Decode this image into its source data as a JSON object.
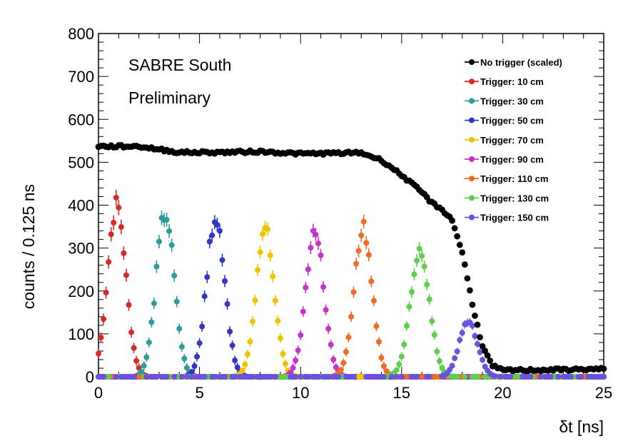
{
  "chart_data": {
    "type": "scatter",
    "title": "",
    "xlabel": "δt [ns]",
    "ylabel": "counts / 0.125 ns",
    "xlim": [
      0,
      25
    ],
    "ylim": [
      0,
      800
    ],
    "x_ticks": [
      "0",
      "5",
      "10",
      "15",
      "20",
      "25"
    ],
    "y_ticks": [
      "0",
      "100",
      "200",
      "300",
      "400",
      "500",
      "600",
      "700",
      "800"
    ],
    "grid": false,
    "legend_position": "top-right",
    "annotations": [
      "SABRE South",
      "Preliminary"
    ],
    "series": [
      {
        "name": "No trigger (scaled)",
        "color": "#000000",
        "kind": "flat",
        "profile": [
          [
            0,
            537
          ],
          [
            2,
            537
          ],
          [
            4,
            523
          ],
          [
            6,
            523
          ],
          [
            8,
            525
          ],
          [
            10,
            520
          ],
          [
            13,
            522
          ],
          [
            14,
            505
          ],
          [
            15,
            470
          ],
          [
            16,
            430
          ],
          [
            16.5,
            405
          ],
          [
            17,
            390
          ],
          [
            17.5,
            365
          ],
          [
            18,
            290
          ],
          [
            18.5,
            170
          ],
          [
            19,
            70
          ],
          [
            19.5,
            25
          ],
          [
            20,
            15
          ],
          [
            22,
            16
          ],
          [
            25,
            18
          ]
        ]
      },
      {
        "name": "Trigger: 10 cm",
        "color": "#d42a2a",
        "kind": "peak",
        "center": 0.9,
        "sigma": 0.45,
        "peak": 400,
        "error": 18
      },
      {
        "name": "Trigger: 30 cm",
        "color": "#2e9c9c",
        "kind": "peak",
        "center": 3.3,
        "sigma": 0.45,
        "peak": 380,
        "error": 17
      },
      {
        "name": "Trigger: 50 cm",
        "color": "#3535c8",
        "kind": "peak",
        "center": 5.8,
        "sigma": 0.45,
        "peak": 375,
        "error": 17
      },
      {
        "name": "Trigger: 70 cm",
        "color": "#f2c200",
        "kind": "peak",
        "center": 8.25,
        "sigma": 0.45,
        "peak": 345,
        "error": 16
      },
      {
        "name": "Trigger: 90 cm",
        "color": "#c832c8",
        "kind": "peak",
        "center": 10.7,
        "sigma": 0.45,
        "peak": 345,
        "error": 16
      },
      {
        "name": "Trigger: 110 cm",
        "color": "#f06a28",
        "kind": "peak",
        "center": 13.1,
        "sigma": 0.45,
        "peak": 345,
        "error": 16
      },
      {
        "name": "Trigger: 130 cm",
        "color": "#5ccf4c",
        "kind": "peak",
        "center": 15.9,
        "sigma": 0.48,
        "peak": 290,
        "error": 15
      },
      {
        "name": "Trigger: 150 cm",
        "color": "#6a52e0",
        "kind": "peak",
        "center": 18.3,
        "sigma": 0.45,
        "peak": 130,
        "error": 10
      }
    ]
  }
}
